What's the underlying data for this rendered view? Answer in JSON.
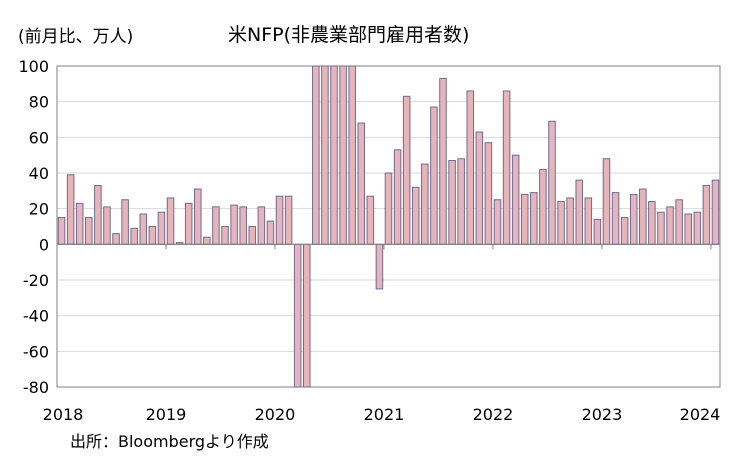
{
  "header": {
    "unit_label": "(前月比、万人)",
    "title": "米NFP(非農業部門雇用者数)"
  },
  "footer": {
    "source": "出所：Bloombergより作成"
  },
  "colors": {
    "bar_fill": "#e8b4b8",
    "bar_stroke": "#6b6b9a",
    "grid": "#d9d9d9",
    "axis": "#808080"
  },
  "chart_data": {
    "type": "bar",
    "title": "米NFP(非農業部門雇用者数)",
    "ylabel": "(前月比、万人)",
    "xlabel": "",
    "ylim": [
      -80,
      100
    ],
    "yticks": [
      100,
      80,
      60,
      40,
      20,
      0,
      -20,
      -40,
      -60,
      -80
    ],
    "ytick_labels": [
      "100",
      "80",
      "60",
      "40",
      "20",
      "0",
      "-20",
      "-40",
      "-60",
      "-80"
    ],
    "xtick_labels": [
      "2018",
      "2019",
      "2020",
      "2021",
      "2022",
      "2023",
      "2024"
    ],
    "grid": true,
    "categories": [
      "2018-01",
      "2018-02",
      "2018-03",
      "2018-04",
      "2018-05",
      "2018-06",
      "2018-07",
      "2018-08",
      "2018-09",
      "2018-10",
      "2018-11",
      "2018-12",
      "2019-01",
      "2019-02",
      "2019-03",
      "2019-04",
      "2019-05",
      "2019-06",
      "2019-07",
      "2019-08",
      "2019-09",
      "2019-10",
      "2019-11",
      "2019-12",
      "2020-01",
      "2020-02",
      "2020-03",
      "2020-04",
      "2020-05",
      "2020-06",
      "2020-07",
      "2020-08",
      "2020-09",
      "2020-10",
      "2020-11",
      "2020-12",
      "2021-01",
      "2021-02",
      "2021-03",
      "2021-04",
      "2021-05",
      "2021-06",
      "2021-07",
      "2021-08",
      "2021-09",
      "2021-10",
      "2021-11",
      "2021-12",
      "2022-01",
      "2022-02",
      "2022-03",
      "2022-04",
      "2022-05",
      "2022-06",
      "2022-07",
      "2022-08",
      "2022-09",
      "2022-10",
      "2022-11",
      "2022-12",
      "2023-01",
      "2023-02",
      "2023-03",
      "2023-04",
      "2023-05",
      "2023-06",
      "2023-07",
      "2023-08",
      "2023-09",
      "2023-10",
      "2023-11",
      "2023-12",
      "2024-01"
    ],
    "values": [
      15,
      39,
      23,
      15,
      33,
      21,
      6,
      25,
      9,
      17,
      10,
      18,
      26,
      1,
      23,
      31,
      4,
      21,
      10,
      22,
      21,
      10,
      21,
      13,
      27,
      27,
      -80,
      -80,
      100,
      100,
      100,
      100,
      100,
      68,
      27,
      -25,
      40,
      53,
      83,
      32,
      45,
      77,
      93,
      47,
      48,
      86,
      63,
      57,
      25,
      86,
      50,
      28,
      29,
      42,
      69,
      24,
      26,
      36,
      26,
      14,
      48,
      29,
      15,
      28,
      31,
      24,
      18,
      21,
      25,
      17,
      18,
      33,
      36
    ]
  }
}
